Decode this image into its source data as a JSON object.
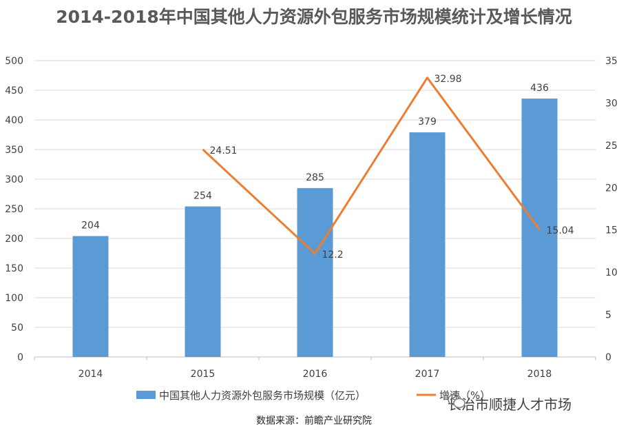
{
  "title": "2014-2018年中国其他人力资源外包服务市场规模统计及增长情况",
  "source": "数据来源：前瞻产业研究院",
  "watermark": "长治市顺捷人才市场",
  "colors": {
    "bar": "#5B9BD5",
    "line": "#ED7D31",
    "grid": "#D9D9D9"
  },
  "chart_data": {
    "type": "bar",
    "categories": [
      "2014",
      "2015",
      "2016",
      "2017",
      "2018"
    ],
    "series": [
      {
        "name": "中国其他人力资源外包服务市场规模（亿元）",
        "type": "bar",
        "axis": "left",
        "values": [
          204,
          254,
          285,
          379,
          436
        ]
      },
      {
        "name": "增速（%）",
        "type": "line",
        "axis": "right",
        "values": [
          null,
          24.51,
          12.2,
          32.98,
          15.04
        ]
      }
    ],
    "left_axis": {
      "ylim": [
        0,
        500
      ],
      "ticks": [
        "0",
        "50",
        "100",
        "150",
        "200",
        "250",
        "300",
        "350",
        "400",
        "450",
        "500"
      ]
    },
    "right_axis": {
      "ylim": [
        0,
        35
      ],
      "ticks": [
        "0",
        "5",
        "10",
        "15",
        "20",
        "25",
        "30",
        "35"
      ]
    },
    "bar_labels": [
      "204",
      "254",
      "285",
      "379",
      "436"
    ],
    "line_labels": [
      "",
      "24.51",
      "12.2",
      "32.98",
      "15.04"
    ],
    "grid": true,
    "legend_position": "bottom"
  }
}
